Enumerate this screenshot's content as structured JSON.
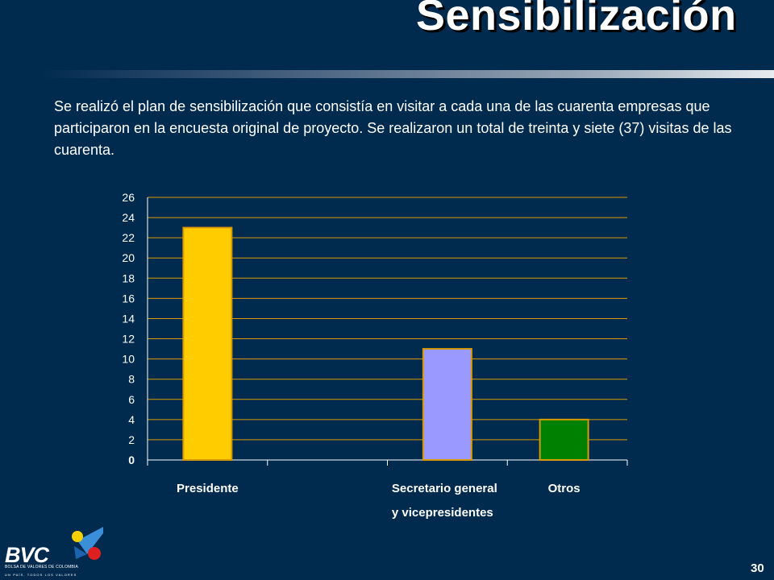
{
  "slide": {
    "title": "Sensibilización",
    "body": "Se realizó el plan de sensibilización que consistía en visitar a cada una de las cuarenta empresas que participaron en la encuesta original de proyecto.  Se realizaron un total de treinta y siete (37) visitas de las cuarenta.",
    "page_number": "30"
  },
  "logo": {
    "name": "BVC",
    "line1": "BOLSA DE VALORES DE COLOMBIA",
    "line2": "UN PAÍS, TODOS LOS VALORES"
  },
  "chart_data": {
    "type": "bar",
    "categories": [
      "Presidente",
      "Secretario general y vicepresidentes",
      "Otros"
    ],
    "category_label_lines": [
      [
        "Presidente"
      ],
      [
        "Secretario general",
        "y vicepresidentes"
      ],
      [
        "Otros"
      ]
    ],
    "values": [
      23,
      11,
      4
    ],
    "colors": [
      "#ffcc00",
      "#9999ff",
      "#008000"
    ],
    "bar_outline": "#d89a00",
    "gridline_color": "#d89a00",
    "ylim": [
      0,
      26
    ],
    "yticks": [
      0,
      2,
      4,
      6,
      8,
      10,
      12,
      14,
      16,
      18,
      20,
      22,
      24,
      26
    ],
    "grid": true,
    "legend": "none",
    "title": "",
    "xlabel": "",
    "ylabel": ""
  }
}
